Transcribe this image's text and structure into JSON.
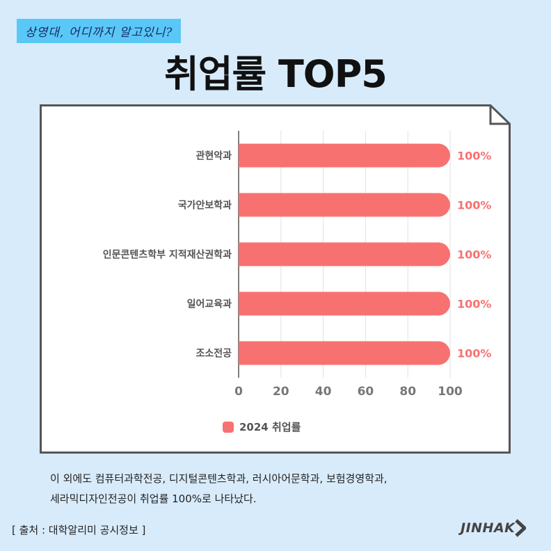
{
  "header": {
    "tagline": "상영대, 어디까지 알고있니?",
    "title": "취업률 TOP5"
  },
  "chart_data": {
    "type": "bar",
    "orientation": "horizontal",
    "categories": [
      "관현악과",
      "국가안보학과",
      "인문콘텐츠학부 지적재산권학과",
      "일어교육과",
      "조소전공"
    ],
    "series": [
      {
        "name": "2024 취업률",
        "values": [
          100,
          100,
          100,
          100,
          100
        ],
        "color": "#f87171"
      }
    ],
    "data_labels": [
      "100%",
      "100%",
      "100%",
      "100%",
      "100%"
    ],
    "xlim": [
      0,
      100
    ],
    "xticks": [
      "0",
      "20",
      "40",
      "60",
      "80",
      "100"
    ],
    "grid": true,
    "legend_position": "bottom"
  },
  "legend": {
    "label": "2024 취업률"
  },
  "note": {
    "line1": "이 외에도 컴퓨터과학전공, 디지털콘텐츠학과, 러시아어문학과, 보험경영학과,",
    "line2": "세라믹디자인전공이 취업률 100%로 나타났다."
  },
  "footer": {
    "source": "[ 출처 : 대학알리미 공시정보 ]",
    "logo": "JINHAK"
  },
  "colors": {
    "background": "#d8ebfb",
    "tagline_bg": "#5ac8f6",
    "bar": "#f87171",
    "data_label": "#f87171"
  }
}
